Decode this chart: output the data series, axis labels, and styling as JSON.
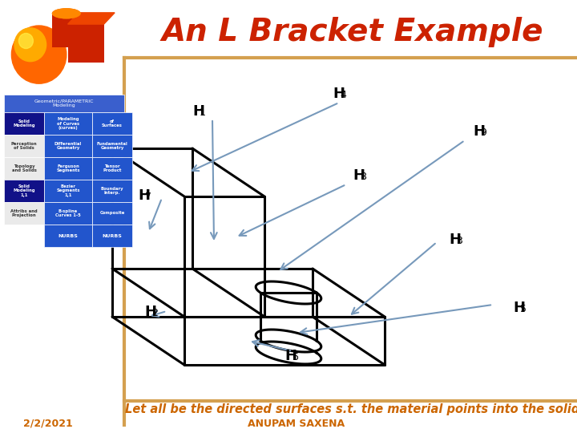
{
  "title": "An L Bracket Example",
  "title_color": "#cc2200",
  "bg_color": "#ffffff",
  "border_color": "#d4a050",
  "bottom_text": "Let all be the directed surfaces s.t. the material points into the solid",
  "bottom_text_color": "#cc6600",
  "footer_left": "2/2/2021",
  "footer_center": "ANUPAM SAXENA",
  "footer_color": "#cc6600",
  "line_color": "#000000",
  "arrow_color": "#7799bb",
  "label_color": "#000000",
  "lw": 2.2,
  "arrow_lw": 1.5
}
